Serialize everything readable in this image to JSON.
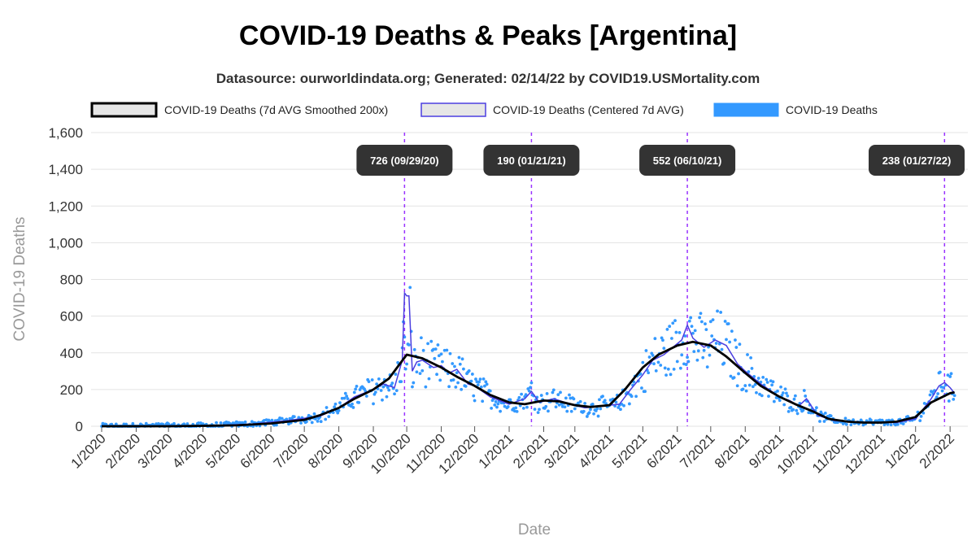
{
  "chart_data": {
    "type": "line",
    "title": "COVID-19 Deaths & Peaks [Argentina]",
    "subtitle": "Datasource: ourworldindata.org; Generated: 02/14/22 by COVID19.USMortality.com",
    "xlabel": "Date",
    "ylabel": "COVID-19 Deaths",
    "ylim": [
      0,
      1600
    ],
    "y_ticks": [
      0,
      200,
      400,
      600,
      800,
      1000,
      1200,
      1400,
      1600
    ],
    "y_tick_labels": [
      "0",
      "200",
      "400",
      "600",
      "800",
      "1,000",
      "1,200",
      "1,400",
      "1,600"
    ],
    "x_tick_labels": [
      "1/2020",
      "2/2020",
      "3/2020",
      "4/2020",
      "5/2020",
      "6/2020",
      "7/2020",
      "8/2020",
      "9/2020",
      "10/2020",
      "11/2020",
      "12/2020",
      "1/2021",
      "2/2021",
      "3/2021",
      "4/2021",
      "5/2021",
      "6/2021",
      "7/2021",
      "8/2021",
      "9/2021",
      "10/2021",
      "11/2021",
      "12/2021",
      "1/2022",
      "2/2022"
    ],
    "grid": true,
    "legend_position": "top",
    "legend": [
      {
        "label": "COVID-19 Deaths (7d AVG Smoothed 200x)",
        "swatch": "smoothed"
      },
      {
        "label": "COVID-19 Deaths (Centered 7d AVG)",
        "swatch": "centered"
      },
      {
        "label": "COVID-19 Deaths",
        "swatch": "daily"
      }
    ],
    "colors": {
      "smoothed": "#000000",
      "centered": "#4b3fe0",
      "daily": "#3399ff",
      "peak_line": "#9933ff",
      "peak_label_bg": "#333333",
      "grid": "#e3e3e3"
    },
    "peaks": [
      {
        "date": "2020-09-29",
        "value": 726,
        "label": "726 (09/29/20)"
      },
      {
        "date": "2021-01-21",
        "value": 190,
        "label": "190 (01/21/21)"
      },
      {
        "date": "2021-06-10",
        "value": 552,
        "label": "552 (06/10/21)"
      },
      {
        "date": "2022-01-27",
        "value": 238,
        "label": "238 (01/27/22)"
      }
    ],
    "series": [
      {
        "name": "COVID-19 Deaths (7d AVG Smoothed 200x)",
        "style": "smoothed",
        "x": [
          "2020-01-01",
          "2020-03-01",
          "2020-04-01",
          "2020-05-01",
          "2020-06-01",
          "2020-07-01",
          "2020-07-15",
          "2020-08-01",
          "2020-08-15",
          "2020-09-01",
          "2020-09-15",
          "2020-10-01",
          "2020-10-15",
          "2020-11-01",
          "2020-11-15",
          "2020-12-01",
          "2020-12-15",
          "2021-01-01",
          "2021-01-15",
          "2021-02-01",
          "2021-02-15",
          "2021-03-01",
          "2021-03-15",
          "2021-04-01",
          "2021-04-15",
          "2021-05-01",
          "2021-05-15",
          "2021-06-01",
          "2021-06-15",
          "2021-07-01",
          "2021-07-15",
          "2021-08-01",
          "2021-08-15",
          "2021-09-01",
          "2021-09-15",
          "2021-10-01",
          "2021-10-15",
          "2021-11-01",
          "2021-11-15",
          "2021-12-01",
          "2021-12-15",
          "2022-01-01",
          "2022-01-15",
          "2022-02-01",
          "2022-02-05"
        ],
        "y": [
          0,
          0,
          2,
          5,
          15,
          35,
          60,
          100,
          150,
          200,
          260,
          390,
          370,
          320,
          270,
          220,
          170,
          130,
          120,
          140,
          135,
          115,
          105,
          115,
          200,
          320,
          390,
          440,
          460,
          440,
          380,
          290,
          220,
          160,
          120,
          80,
          40,
          25,
          20,
          20,
          25,
          50,
          130,
          180,
          185
        ]
      },
      {
        "name": "COVID-19 Deaths (Centered 7d AVG)",
        "style": "centered",
        "x": [
          "2020-01-01",
          "2020-03-15",
          "2020-04-15",
          "2020-05-15",
          "2020-06-15",
          "2020-07-15",
          "2020-08-01",
          "2020-08-15",
          "2020-09-01",
          "2020-09-10",
          "2020-09-20",
          "2020-09-27",
          "2020-09-29",
          "2020-10-01",
          "2020-10-03",
          "2020-10-06",
          "2020-10-10",
          "2020-10-15",
          "2020-10-25",
          "2020-11-01",
          "2020-11-08",
          "2020-11-15",
          "2020-11-25",
          "2020-12-01",
          "2020-12-15",
          "2021-01-01",
          "2021-01-15",
          "2021-01-21",
          "2021-01-28",
          "2021-02-10",
          "2021-02-25",
          "2021-03-10",
          "2021-03-25",
          "2021-04-10",
          "2021-04-20",
          "2021-05-01",
          "2021-05-10",
          "2021-05-20",
          "2021-05-28",
          "2021-06-05",
          "2021-06-10",
          "2021-06-15",
          "2021-06-25",
          "2021-07-05",
          "2021-07-15",
          "2021-07-25",
          "2021-08-01",
          "2021-08-15",
          "2021-09-01",
          "2021-09-10",
          "2021-09-18",
          "2021-09-25",
          "2021-10-05",
          "2021-10-20",
          "2021-11-15",
          "2021-12-15",
          "2022-01-01",
          "2022-01-15",
          "2022-01-22",
          "2022-01-27",
          "2022-02-01",
          "2022-02-05"
        ],
        "y": [
          0,
          2,
          5,
          12,
          30,
          55,
          100,
          160,
          200,
          230,
          210,
          360,
          726,
          710,
          710,
          300,
          350,
          360,
          320,
          330,
          290,
          310,
          230,
          220,
          160,
          120,
          150,
          190,
          130,
          150,
          120,
          100,
          110,
          120,
          200,
          280,
          360,
          390,
          430,
          470,
          552,
          480,
          430,
          470,
          440,
          340,
          300,
          230,
          160,
          140,
          110,
          150,
          60,
          30,
          22,
          20,
          40,
          150,
          220,
          238,
          210,
          180
        ]
      },
      {
        "name": "COVID-19 Deaths",
        "style": "daily",
        "points": "scatter around the centered 7d average (daily reported values)"
      }
    ]
  }
}
